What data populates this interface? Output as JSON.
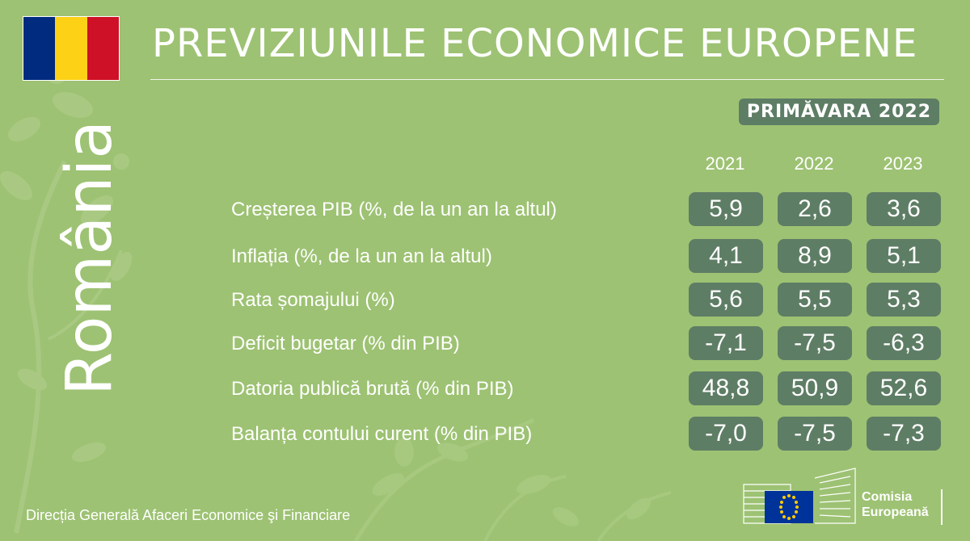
{
  "header": {
    "title": "PREVIZIUNILE ECONOMICE EUROPENE",
    "season": "PRIMĂVARA 2022",
    "country": "România",
    "flag_colors": [
      "#002b7f",
      "#fcd116",
      "#ce1126"
    ]
  },
  "table": {
    "years": [
      "2021",
      "2022",
      "2023"
    ],
    "rows": [
      {
        "label": "Creșterea PIB (%, de la un an la altul)",
        "values": [
          "5,9",
          "2,6",
          "3,6"
        ]
      },
      {
        "label": "Inflația (%, de la un an la altul)",
        "values": [
          "4,1",
          "8,9",
          "5,1"
        ]
      },
      {
        "label": "Rata șomajului (%)",
        "values": [
          "5,6",
          "5,5",
          "5,3"
        ]
      },
      {
        "label": "Deficit bugetar (% din PIB)",
        "values": [
          "-7,1",
          "-7,5",
          "-6,3"
        ]
      },
      {
        "label": "Datoria publică brută (% din PIB)",
        "values": [
          "48,8",
          "50,9",
          "52,6"
        ]
      },
      {
        "label": "Balanța contului curent (% din PIB)",
        "values": [
          "-7,0",
          "-7,5",
          "-7,3"
        ]
      }
    ]
  },
  "footer": {
    "directorate": "Direcția Generală Afaceri Economice şi Financiare",
    "logo_line1": "Comisia",
    "logo_line2": "Europeană"
  },
  "colors": {
    "background": "#9dc273",
    "badge": "#5e7d65",
    "eu_blue": "#003399",
    "eu_yellow": "#ffcc00"
  }
}
